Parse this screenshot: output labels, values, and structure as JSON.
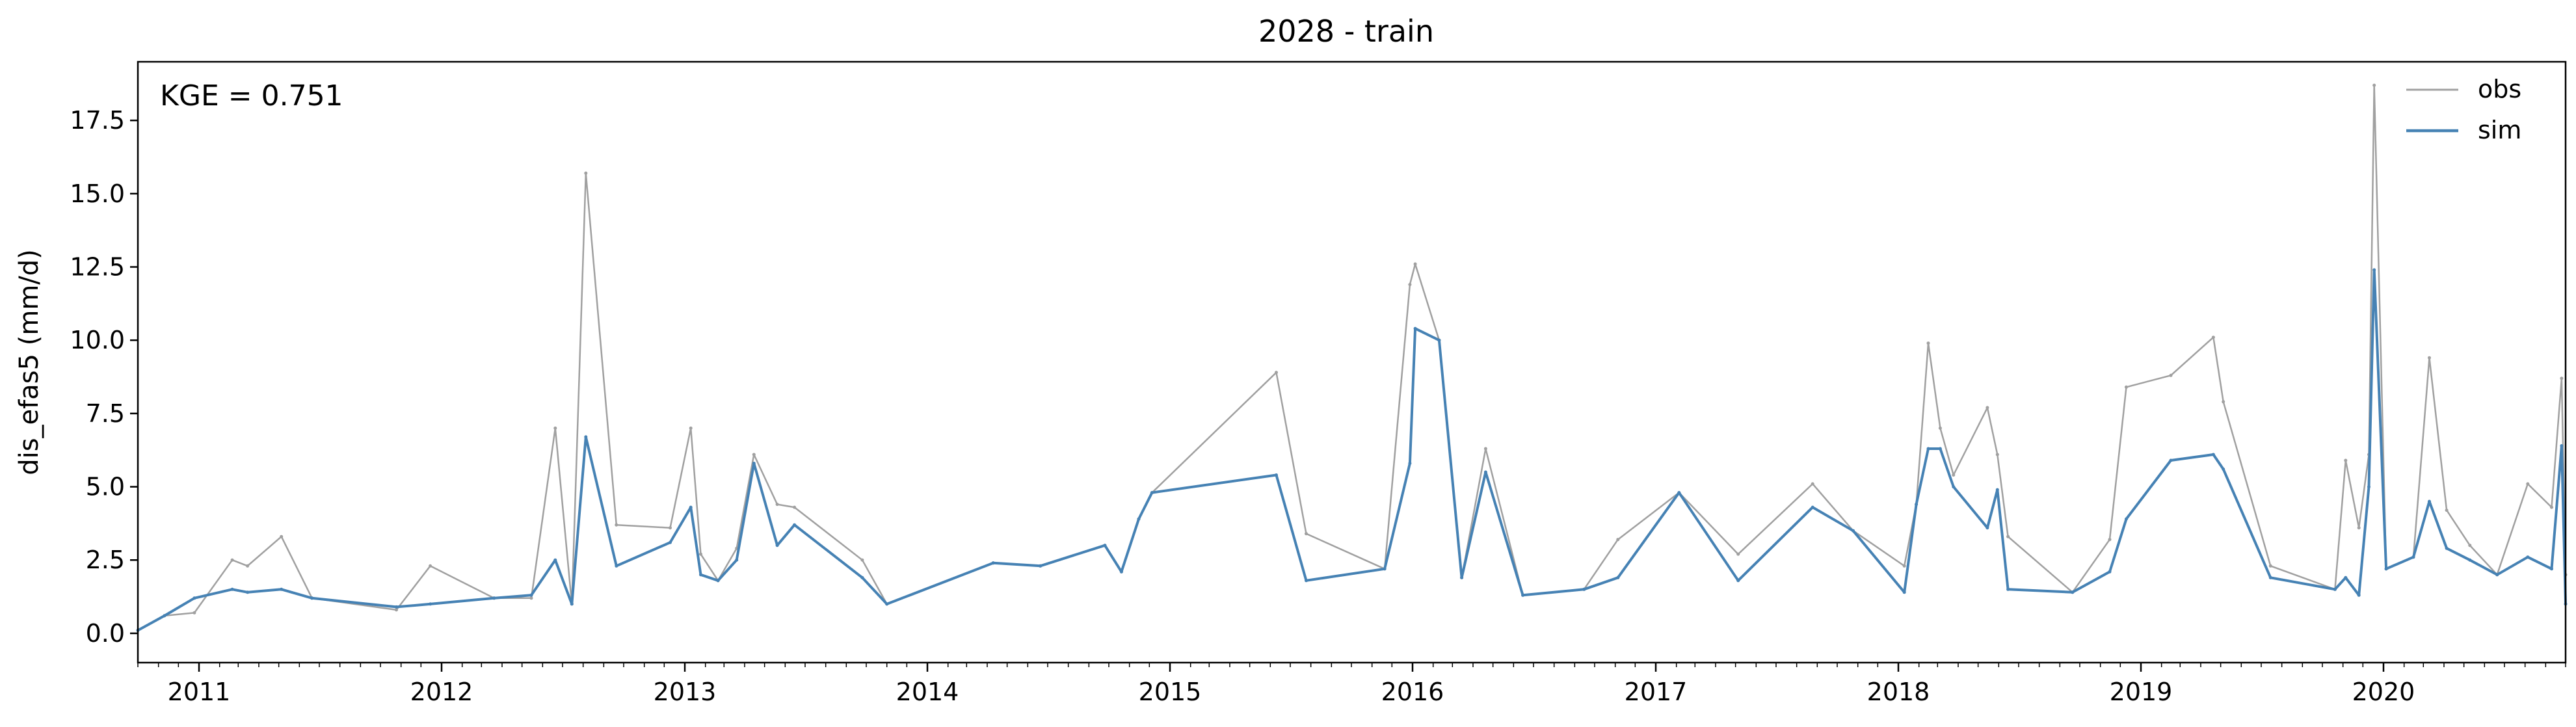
{
  "chart_data": {
    "type": "line",
    "title": "2028 - train",
    "xlabel": "",
    "ylabel": "dis_efas5 (mm/d)",
    "annotation": "KGE = 0.751",
    "xlim": [
      "2010-10-01",
      "2020-10-01"
    ],
    "ylim": [
      -1.0,
      19.5
    ],
    "yticks": [
      0.0,
      2.5,
      5.0,
      7.5,
      10.0,
      12.5,
      15.0,
      17.5
    ],
    "ytick_labels": [
      "0.0",
      "2.5",
      "5.0",
      "7.5",
      "10.0",
      "12.5",
      "15.0",
      "17.5"
    ],
    "xticks": [
      "2011-01-01",
      "2012-01-01",
      "2013-01-01",
      "2014-01-01",
      "2015-01-01",
      "2016-01-01",
      "2017-01-01",
      "2018-01-01",
      "2019-01-01",
      "2020-01-01"
    ],
    "xtick_labels": [
      "2011",
      "2012",
      "2013",
      "2014",
      "2015",
      "2016",
      "2017",
      "2018",
      "2019",
      "2020"
    ],
    "grid": false,
    "legend_position": "top-right",
    "series": [
      {
        "name": "obs",
        "color": "#a0a0a0",
        "x": [
          "2010-10-01",
          "2010-11-10",
          "2010-12-25",
          "2011-02-20",
          "2011-03-15",
          "2011-05-05",
          "2011-06-20",
          "2011-10-25",
          "2011-12-15",
          "2012-03-20",
          "2012-05-15",
          "2012-06-20",
          "2012-07-15",
          "2012-08-05",
          "2012-09-20",
          "2012-12-10",
          "2013-01-10",
          "2013-01-25",
          "2013-02-20",
          "2013-03-20",
          "2013-04-15",
          "2013-05-20",
          "2013-06-15",
          "2013-09-25",
          "2013-11-01",
          "2014-04-10",
          "2014-06-20",
          "2014-09-25",
          "2014-10-20",
          "2014-11-15",
          "2014-12-05",
          "2015-06-10",
          "2015-07-25",
          "2015-11-20",
          "2015-12-28",
          "2016-01-05",
          "2016-02-10",
          "2016-03-15",
          "2016-04-20",
          "2016-06-15",
          "2016-09-15",
          "2016-11-05",
          "2017-02-05",
          "2017-05-05",
          "2017-08-25",
          "2017-10-25",
          "2018-01-10",
          "2018-01-28",
          "2018-02-15",
          "2018-03-05",
          "2018-03-25",
          "2018-05-15",
          "2018-05-30",
          "2018-06-15",
          "2018-09-20",
          "2018-11-15",
          "2018-12-10",
          "2019-02-15",
          "2019-04-20",
          "2019-05-05",
          "2019-07-15",
          "2019-10-20",
          "2019-11-05",
          "2019-11-25",
          "2019-12-10",
          "2019-12-18",
          "2020-01-05",
          "2020-02-15",
          "2020-03-10",
          "2020-04-05",
          "2020-05-10",
          "2020-06-20",
          "2020-08-05",
          "2020-09-10",
          "2020-09-25",
          "2020-10-01"
        ],
        "values": [
          0.1,
          0.6,
          0.7,
          2.5,
          2.3,
          3.3,
          1.2,
          0.8,
          2.3,
          1.2,
          1.2,
          7.0,
          1.0,
          15.7,
          3.7,
          3.6,
          7.0,
          2.7,
          1.8,
          2.9,
          6.1,
          4.4,
          4.3,
          2.5,
          1.0,
          2.4,
          2.3,
          3.0,
          2.1,
          3.9,
          4.8,
          8.9,
          3.4,
          2.2,
          11.9,
          12.6,
          10.0,
          1.9,
          6.3,
          1.3,
          1.5,
          3.2,
          4.8,
          2.7,
          5.1,
          3.5,
          2.3,
          4.4,
          9.9,
          7.0,
          5.4,
          7.7,
          6.1,
          3.3,
          1.4,
          3.2,
          8.4,
          8.8,
          10.1,
          7.9,
          2.3,
          1.5,
          5.9,
          3.6,
          6.1,
          18.7,
          2.2,
          2.6,
          9.4,
          4.2,
          3.0,
          2.0,
          5.1,
          4.3,
          8.7,
          2.0
        ]
      },
      {
        "name": "sim",
        "color": "#4682b4",
        "x": [
          "2010-10-01",
          "2010-11-10",
          "2010-12-25",
          "2011-02-20",
          "2011-03-15",
          "2011-05-05",
          "2011-06-20",
          "2011-10-25",
          "2011-12-15",
          "2012-03-20",
          "2012-05-15",
          "2012-06-20",
          "2012-07-15",
          "2012-08-05",
          "2012-09-20",
          "2012-12-10",
          "2013-01-10",
          "2013-01-25",
          "2013-02-20",
          "2013-03-20",
          "2013-04-15",
          "2013-05-20",
          "2013-06-15",
          "2013-09-25",
          "2013-11-01",
          "2014-04-10",
          "2014-06-20",
          "2014-09-25",
          "2014-10-20",
          "2014-11-15",
          "2014-12-05",
          "2015-06-10",
          "2015-07-25",
          "2015-11-20",
          "2015-12-28",
          "2016-01-05",
          "2016-02-10",
          "2016-03-15",
          "2016-04-20",
          "2016-06-15",
          "2016-09-15",
          "2016-11-05",
          "2017-02-05",
          "2017-05-05",
          "2017-08-25",
          "2017-10-25",
          "2018-01-10",
          "2018-01-28",
          "2018-02-15",
          "2018-03-05",
          "2018-03-25",
          "2018-05-15",
          "2018-05-30",
          "2018-06-15",
          "2018-09-20",
          "2018-11-15",
          "2018-12-10",
          "2019-02-15",
          "2019-04-20",
          "2019-05-05",
          "2019-07-15",
          "2019-10-20",
          "2019-11-05",
          "2019-11-25",
          "2019-12-10",
          "2019-12-18",
          "2020-01-05",
          "2020-02-15",
          "2020-03-10",
          "2020-04-05",
          "2020-05-10",
          "2020-06-20",
          "2020-08-05",
          "2020-09-10",
          "2020-09-25",
          "2020-10-01"
        ],
        "values": [
          0.1,
          0.6,
          1.2,
          1.5,
          1.4,
          1.5,
          1.2,
          0.9,
          1.0,
          1.2,
          1.3,
          2.5,
          1.0,
          6.7,
          2.3,
          3.1,
          4.3,
          2.0,
          1.8,
          2.5,
          5.8,
          3.0,
          3.7,
          1.9,
          1.0,
          2.4,
          2.3,
          3.0,
          2.1,
          3.9,
          4.8,
          5.4,
          1.8,
          2.2,
          5.8,
          10.4,
          10.0,
          1.9,
          5.5,
          1.3,
          1.5,
          1.9,
          4.8,
          1.8,
          4.3,
          3.5,
          1.4,
          4.4,
          6.3,
          6.3,
          5.0,
          3.6,
          4.9,
          1.5,
          1.4,
          2.1,
          3.9,
          5.9,
          6.1,
          5.6,
          1.9,
          1.5,
          1.9,
          1.3,
          5.0,
          12.4,
          2.2,
          2.6,
          4.5,
          2.9,
          2.5,
          2.0,
          2.6,
          2.2,
          6.4,
          1.0
        ]
      }
    ]
  }
}
